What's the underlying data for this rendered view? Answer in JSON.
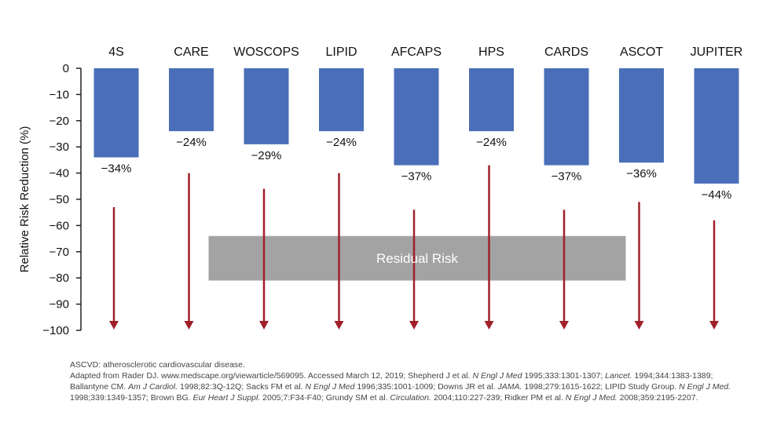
{
  "chart_data": {
    "type": "bar",
    "categories": [
      "4S",
      "CARE",
      "WOSCOPS",
      "LIPID",
      "AFCAPS",
      "HPS",
      "CARDS",
      "ASCOT",
      "JUPITER"
    ],
    "values": [
      -34,
      -24,
      -29,
      -24,
      -37,
      -24,
      -37,
      -36,
      -44
    ],
    "value_labels": [
      "−34%",
      "−24%",
      "−29%",
      "−24%",
      "−37%",
      "−24%",
      "−37%",
      "−36%",
      "−44%"
    ],
    "ylabel": "Relative Risk Reduction (%)",
    "ylim": [
      -100,
      0
    ],
    "yticks": [
      0,
      -10,
      -20,
      -30,
      -40,
      -50,
      -60,
      -70,
      -80,
      -90,
      -100
    ],
    "ytick_labels": [
      "0",
      "−10",
      "−20",
      "−30",
      "−40",
      "−50",
      "−60",
      "−70",
      "−80",
      "−90",
      "−100"
    ],
    "category_position": "top",
    "grid": false,
    "residual_risk": {
      "label": "Residual Risk",
      "from_category": "CARE",
      "to_category": "ASCOT",
      "y_range": [
        -64,
        -81
      ]
    },
    "arrow_ends": [
      -53,
      -40,
      -46,
      -40,
      -54,
      -37,
      -54,
      -51,
      -58
    ],
    "colors": {
      "bar": "#4a6fb8",
      "arrow": "#a0202a",
      "residual_box": "#a3a3a3",
      "axis": "#222222"
    }
  },
  "footnote": {
    "line1": "ASCVD: atherosclerotic cardiovascular disease.",
    "refs": [
      {
        "t": "Adapted from Rader DJ. www.medscape.org/viewarticle/569095. Accessed March 12, 2019; Shepherd J et al. ",
        "i": false
      },
      {
        "t": "N Engl J Med",
        "i": true
      },
      {
        "t": " 1995;333:1301-1307; ",
        "i": false
      },
      {
        "t": "Lancet.",
        "i": true
      },
      {
        "t": " 1994;344:1383-1389; Ballantyne CM. ",
        "i": false
      },
      {
        "t": "Am J Cardiol.",
        "i": true
      },
      {
        "t": " 1998;82:3Q-12Q; Sacks FM et al. ",
        "i": false
      },
      {
        "t": "N Engl J Med",
        "i": true
      },
      {
        "t": " 1996;335:1001-1009; Downs JR et al. ",
        "i": false
      },
      {
        "t": "JAMA.",
        "i": true
      },
      {
        "t": " 1998;279:1615-1622; LIPID Study Group. ",
        "i": false
      },
      {
        "t": "N Engl J Med.",
        "i": true
      },
      {
        "t": " 1998;339:1349-1357; Brown BG. ",
        "i": false
      },
      {
        "t": "Eur Heart J Suppl.",
        "i": true
      },
      {
        "t": " 2005;7:F34-F40; Grundy SM et al. ",
        "i": false
      },
      {
        "t": "Circulation.",
        "i": true
      },
      {
        "t": " 2004;110:227-239; Ridker PM et al. ",
        "i": false
      },
      {
        "t": "N Engl J Med.",
        "i": true
      },
      {
        "t": " 2008;359:2195-2207.",
        "i": false
      }
    ]
  }
}
